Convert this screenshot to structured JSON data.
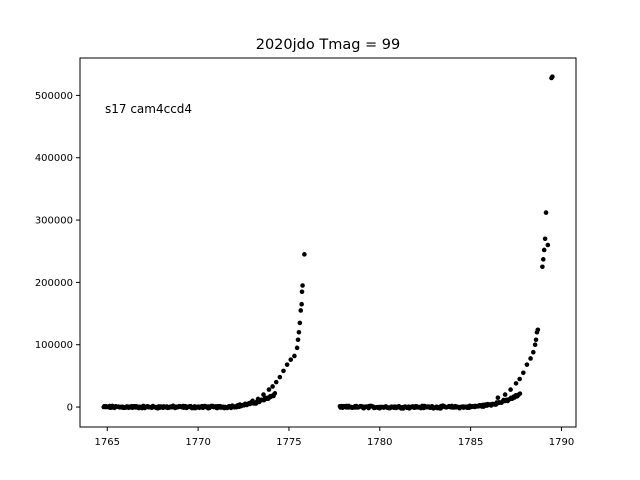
{
  "chart_data": {
    "type": "scatter",
    "title": "2020jdo Tmag = 99",
    "annotation": "s17 cam4ccd4",
    "xlabel": "",
    "ylabel": "",
    "xlim": [
      1763.5,
      1790.8
    ],
    "ylim": [
      -32000,
      560000
    ],
    "xticks": [
      1765,
      1770,
      1775,
      1780,
      1785,
      1790
    ],
    "yticks": [
      0,
      100000,
      200000,
      300000,
      400000,
      500000
    ],
    "marker_color": "#000000",
    "grid": false,
    "legend": "none",
    "series": [
      {
        "segments": [
          {
            "x_start": 1764.8,
            "x_end": 1775.9,
            "n": 300
          },
          {
            "x_start": 1777.8,
            "x_end": 1789.5,
            "n": 310
          }
        ],
        "points": [
          [
            1773.0,
            10000
          ],
          [
            1773.3,
            13000
          ],
          [
            1773.6,
            20000
          ],
          [
            1773.9,
            28000
          ],
          [
            1774.1,
            33000
          ],
          [
            1774.3,
            40000
          ],
          [
            1774.5,
            48000
          ],
          [
            1774.7,
            58000
          ],
          [
            1774.9,
            68000
          ],
          [
            1775.1,
            76000
          ],
          [
            1775.3,
            82000
          ],
          [
            1775.45,
            95000
          ],
          [
            1775.5,
            108000
          ],
          [
            1775.55,
            120000
          ],
          [
            1775.6,
            135000
          ],
          [
            1775.65,
            155000
          ],
          [
            1775.7,
            165000
          ],
          [
            1775.72,
            185000
          ],
          [
            1775.75,
            195000
          ],
          [
            1775.85,
            245000
          ],
          [
            1786.5,
            15000
          ],
          [
            1786.9,
            20000
          ],
          [
            1787.2,
            28000
          ],
          [
            1787.5,
            38000
          ],
          [
            1787.7,
            45000
          ],
          [
            1787.9,
            55000
          ],
          [
            1788.1,
            68000
          ],
          [
            1788.3,
            78000
          ],
          [
            1788.45,
            88000
          ],
          [
            1788.55,
            100000
          ],
          [
            1788.6,
            108000
          ],
          [
            1788.65,
            120000
          ],
          [
            1788.7,
            124000
          ],
          [
            1788.95,
            225000
          ],
          [
            1789.0,
            237000
          ],
          [
            1789.05,
            252000
          ],
          [
            1789.1,
            270000
          ],
          [
            1789.15,
            312000
          ],
          [
            1789.25,
            260000
          ],
          [
            1789.45,
            528000
          ],
          [
            1789.5,
            530000
          ]
        ]
      }
    ]
  }
}
